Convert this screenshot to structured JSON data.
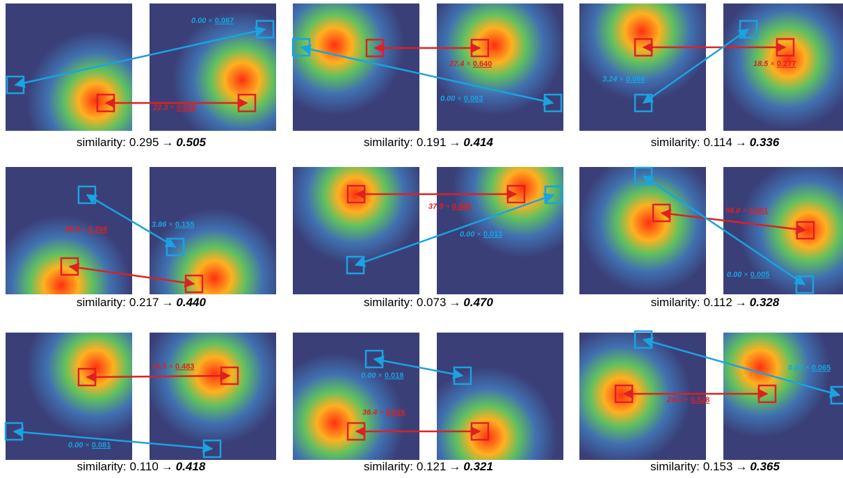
{
  "panels": [
    {
      "red": {
        "weight": "22.3",
        "sep": "×",
        "score": "0.648"
      },
      "blue": {
        "weight": "0.00",
        "sep": "×",
        "score": "0.067"
      },
      "caption": {
        "label": "similarity:",
        "before": "0.295",
        "arrow": "→",
        "after": "0.505"
      }
    },
    {
      "red": {
        "weight": "27.4",
        "sep": "×",
        "score": "0.640"
      },
      "blue": {
        "weight": "0.00",
        "sep": "×",
        "score": "0.063"
      },
      "caption": {
        "label": "similarity:",
        "before": "0.191",
        "arrow": "→",
        "after": "0.414"
      }
    },
    {
      "red": {
        "weight": "18.5",
        "sep": "×",
        "score": "0.277"
      },
      "blue": {
        "weight": "3.24",
        "sep": "×",
        "score": "0.088"
      },
      "caption": {
        "label": "similarity:",
        "before": "0.114",
        "arrow": "→",
        "after": "0.336"
      }
    },
    {
      "red": {
        "weight": "38.5",
        "sep": "×",
        "score": "0.708"
      },
      "blue": {
        "weight": "3.86",
        "sep": "×",
        "score": "0.155"
      },
      "caption": {
        "label": "similarity:",
        "before": "0.217",
        "arrow": "→",
        "after": "0.440"
      }
    },
    {
      "red": {
        "weight": "37.9",
        "sep": "×",
        "score": "0.588"
      },
      "blue": {
        "weight": "0.00",
        "sep": "×",
        "score": "0.013"
      },
      "caption": {
        "label": "similarity:",
        "before": "0.073",
        "arrow": "→",
        "after": "0.470"
      }
    },
    {
      "red": {
        "weight": "56.0",
        "sep": "×",
        "score": "0.601"
      },
      "blue": {
        "weight": "0.00",
        "sep": "×",
        "score": "0.005"
      },
      "caption": {
        "label": "similarity:",
        "before": "0.112",
        "arrow": "→",
        "after": "0.328"
      }
    },
    {
      "red": {
        "weight": "33.5",
        "sep": "×",
        "score": "0.483"
      },
      "blue": {
        "weight": "0.00",
        "sep": "×",
        "score": "0.081"
      },
      "caption": {
        "label": "similarity:",
        "before": "0.110",
        "arrow": "→",
        "after": "0.418"
      }
    },
    {
      "red": {
        "weight": "36.4",
        "sep": "×",
        "score": "0.516"
      },
      "blue": {
        "weight": "0.00",
        "sep": "×",
        "score": "0.018"
      },
      "caption": {
        "label": "similarity:",
        "before": "0.121",
        "arrow": "→",
        "after": "0.321"
      }
    },
    {
      "red": {
        "weight": "24.1",
        "sep": "×",
        "score": "0.528"
      },
      "blue": {
        "weight": "0.00",
        "sep": "×",
        "score": "0.065"
      },
      "caption": {
        "label": "similarity:",
        "before": "0.153",
        "arrow": "→",
        "after": "0.365"
      }
    }
  ]
}
